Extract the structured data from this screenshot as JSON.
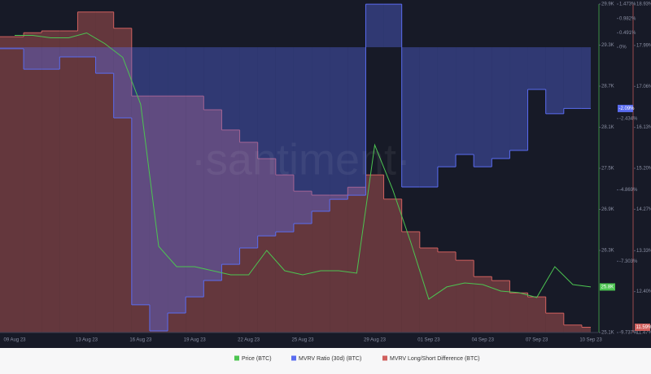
{
  "chart_data": {
    "type": "multi-axis",
    "watermark": "·santiment·",
    "x": [
      "09 Aug 23",
      "10 Aug 23",
      "11 Aug 23",
      "12 Aug 23",
      "13 Aug 23",
      "14 Aug 23",
      "15 Aug 23",
      "16 Aug 23",
      "17 Aug 23",
      "18 Aug 23",
      "19 Aug 23",
      "20 Aug 23",
      "21 Aug 23",
      "22 Aug 23",
      "23 Aug 23",
      "24 Aug 23",
      "25 Aug 23",
      "26 Aug 23",
      "27 Aug 23",
      "28 Aug 23",
      "29 Aug 23",
      "30 Aug 23",
      "31 Aug 23",
      "01 Sep 23",
      "02 Sep 23",
      "03 Sep 23",
      "04 Sep 23",
      "05 Sep 23",
      "06 Sep 23",
      "07 Sep 23",
      "08 Sep 23",
      "09 Sep 23",
      "10 Sep 23"
    ],
    "xticks": [
      "09 Aug 23",
      "13 Aug 23",
      "16 Aug 23",
      "19 Aug 23",
      "22 Aug 23",
      "25 Aug 23",
      "29 Aug 23",
      "01 Sep 23",
      "04 Sep 23",
      "07 Sep 23",
      "10 Sep 23"
    ],
    "ylim": [
      25100,
      29900
    ],
    "yticks": [
      {
        "value": 29900,
        "label": "29.9K"
      },
      {
        "value": 29300,
        "label": "29.3K"
      },
      {
        "value": 28700,
        "label": "28.7K"
      },
      {
        "value": 28100,
        "label": "28.1K"
      },
      {
        "value": 27500,
        "label": "27.5K"
      },
      {
        "value": 26900,
        "label": "26.9K"
      },
      {
        "value": 26300,
        "label": "26.3K"
      },
      {
        "value": 25100,
        "label": "25.1K"
      }
    ],
    "y2lim": [
      -9.737,
      1.473
    ],
    "y2ticks": [
      {
        "value": 1.473,
        "label": "1.473%"
      },
      {
        "value": 0.982,
        "label": "0.982%"
      },
      {
        "value": 0.491,
        "label": "0.491%"
      },
      {
        "value": 0,
        "label": "0%"
      },
      {
        "value": -2.434,
        "label": "-2.434%"
      },
      {
        "value": -4.869,
        "label": "-4.869%"
      },
      {
        "value": -7.303,
        "label": "-7.303%"
      },
      {
        "value": -9.737,
        "label": "-9.737%"
      }
    ],
    "y3lim": [
      11.47,
      18.93
    ],
    "y3ticks": [
      {
        "value": 18.93,
        "label": "18.93%"
      },
      {
        "value": 17.99,
        "label": "17.99%"
      },
      {
        "value": 17.06,
        "label": "17.06%"
      },
      {
        "value": 16.13,
        "label": "16.13%"
      },
      {
        "value": 15.2,
        "label": "15.20%"
      },
      {
        "value": 14.27,
        "label": "14.27%"
      },
      {
        "value": 13.33,
        "label": "13.33%"
      },
      {
        "value": 12.4,
        "label": "12.40%"
      },
      {
        "value": 11.47,
        "label": "11.47%"
      }
    ],
    "series": [
      {
        "name": "Price (BTC)",
        "color": "#4cc451",
        "axis": "y",
        "style": "line",
        "current_label": "25.8K",
        "values": [
          29442,
          29442,
          29407,
          29407,
          29478,
          29324,
          29122,
          28434,
          26359,
          26062,
          26062,
          26003,
          25944,
          25944,
          26300,
          26003,
          25944,
          26003,
          26003,
          25967,
          27841,
          27189,
          26418,
          25588,
          25766,
          25825,
          25801,
          25706,
          25683,
          25612,
          26062,
          25801,
          25766
        ]
      },
      {
        "name": "MVRV Ratio (30d) (BTC)",
        "color": "#5a6cf0",
        "axis": "y2",
        "style": "step",
        "current_label": "-2.09%",
        "values": [
          -0.05,
          -0.75,
          -0.75,
          -0.33,
          -0.33,
          -0.89,
          -2.41,
          -8.79,
          -9.68,
          -9.07,
          -8.52,
          -7.96,
          -7.41,
          -6.85,
          -6.44,
          -6.3,
          -6.02,
          -5.6,
          -5.19,
          -5.05,
          1.47,
          1.47,
          -4.77,
          -4.77,
          -4.08,
          -3.66,
          -4.08,
          -3.8,
          -3.52,
          -1.44,
          -2.27,
          -2.09,
          -2.09
        ]
      },
      {
        "name": "MVRV Long/Short Difference (BTC)",
        "color": "#d0605e",
        "axis": "y3",
        "style": "step",
        "current_label": "11.59%",
        "values": [
          18.19,
          18.28,
          18.32,
          18.32,
          18.75,
          18.75,
          18.38,
          16.84,
          16.84,
          16.84,
          16.84,
          16.53,
          16.07,
          15.79,
          15.42,
          15.05,
          14.68,
          14.59,
          14.59,
          14.77,
          15.05,
          14.5,
          13.76,
          13.39,
          13.3,
          13.11,
          12.74,
          12.65,
          12.37,
          12.28,
          11.91,
          11.64,
          11.59
        ]
      }
    ]
  }
}
